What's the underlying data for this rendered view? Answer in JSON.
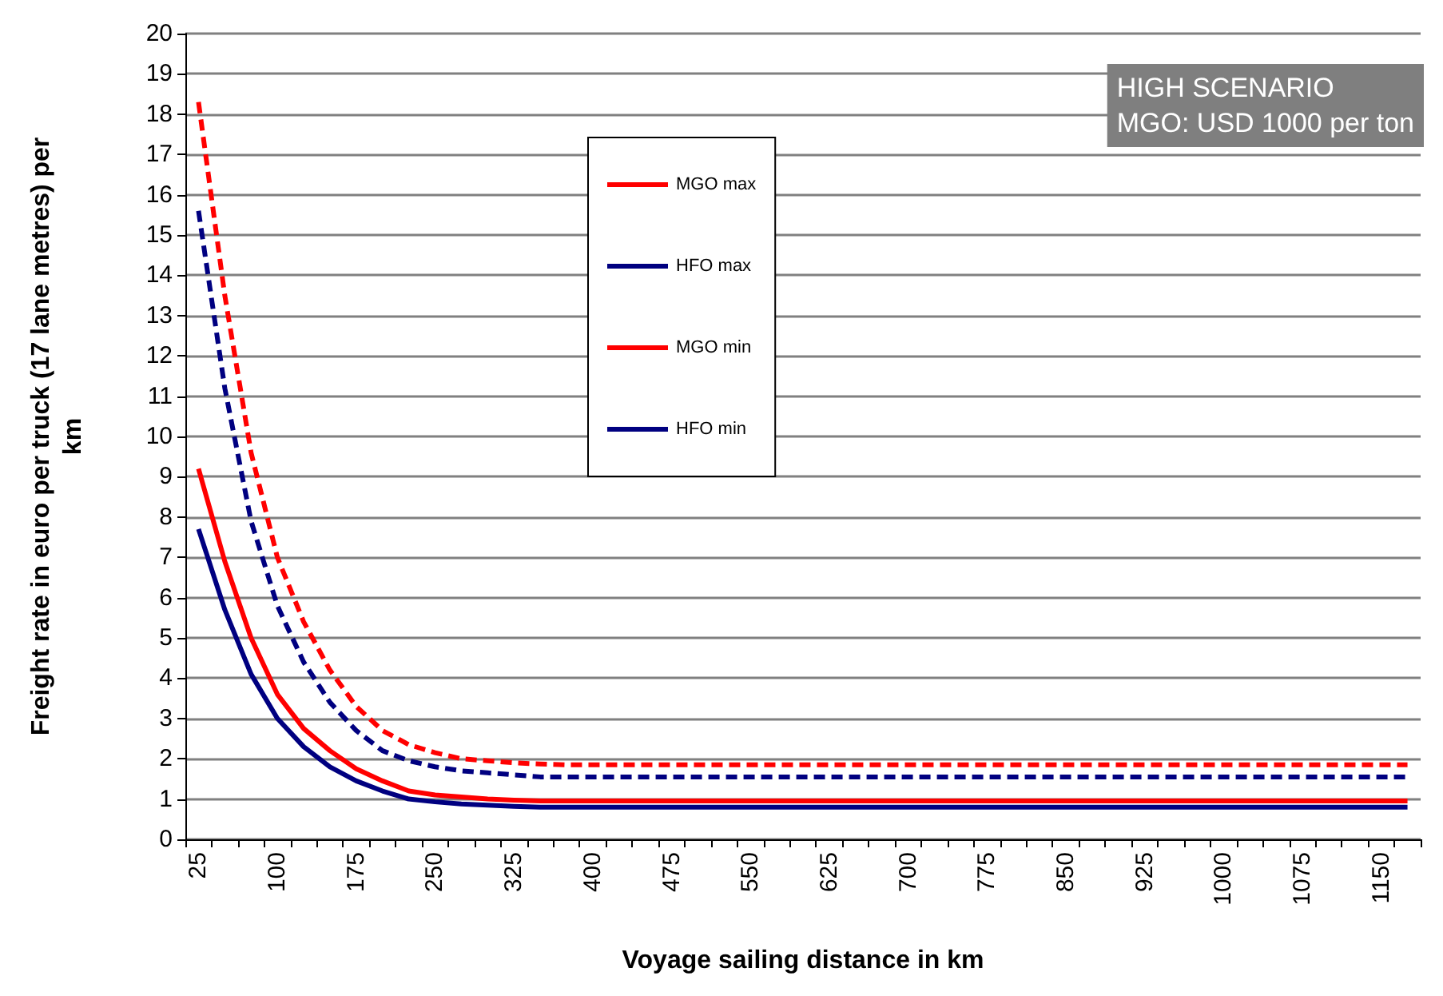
{
  "chart_data": {
    "type": "line",
    "xlabel": "Voyage sailing distance in km",
    "ylabel": "Freight rate in euro per truck (17 lane metres) per\nkm",
    "categories": [
      "25",
      null,
      null,
      "100",
      null,
      null,
      "175",
      null,
      null,
      "250",
      null,
      null,
      "325",
      null,
      null,
      "400",
      null,
      null,
      "475",
      null,
      null,
      "550",
      null,
      null,
      "625",
      null,
      null,
      "700",
      null,
      null,
      "775",
      null,
      null,
      "850",
      null,
      null,
      "925",
      null,
      null,
      "1000",
      null,
      null,
      "1075",
      null,
      null,
      "1150",
      null
    ],
    "ylim": [
      0,
      20
    ],
    "yticks": [
      0,
      1,
      2,
      3,
      4,
      5,
      6,
      7,
      8,
      9,
      10,
      11,
      12,
      13,
      14,
      15,
      16,
      17,
      18,
      19,
      20
    ],
    "grid": "y",
    "legend": "top",
    "marker": "none",
    "annotations": [
      "HIGH SCENARIO\nMGO: USD 1000 per ton"
    ],
    "series": [
      {
        "name": "MGO max",
        "color": "#ff0000",
        "line_style": "dashed",
        "values": [
          18.3,
          13.5,
          9.6,
          7.0,
          5.4,
          4.2,
          3.3,
          2.7,
          2.35,
          2.15,
          2.0,
          1.95,
          1.9,
          1.87,
          1.85,
          1.85,
          1.85,
          1.85,
          1.85,
          1.85,
          1.85,
          1.85,
          1.85,
          1.85,
          1.85,
          1.85,
          1.85,
          1.85,
          1.85,
          1.85,
          1.85,
          1.85,
          1.85,
          1.85,
          1.85,
          1.85,
          1.85,
          1.85,
          1.85,
          1.85,
          1.85,
          1.85,
          1.85,
          1.85,
          1.85,
          1.85,
          1.85
        ]
      },
      {
        "name": "HFO max",
        "color": "#000080",
        "line_style": "dashed",
        "values": [
          15.6,
          11.2,
          7.9,
          5.8,
          4.4,
          3.4,
          2.7,
          2.2,
          1.95,
          1.8,
          1.7,
          1.65,
          1.6,
          1.55,
          1.55,
          1.55,
          1.55,
          1.55,
          1.55,
          1.55,
          1.55,
          1.55,
          1.55,
          1.55,
          1.55,
          1.55,
          1.55,
          1.55,
          1.55,
          1.55,
          1.55,
          1.55,
          1.55,
          1.55,
          1.55,
          1.55,
          1.55,
          1.55,
          1.55,
          1.55,
          1.55,
          1.55,
          1.55,
          1.55,
          1.55,
          1.55,
          1.55
        ]
      },
      {
        "name": "MGO min",
        "color": "#ff0000",
        "line_style": "solid",
        "values": [
          9.2,
          6.9,
          5.0,
          3.6,
          2.75,
          2.2,
          1.75,
          1.45,
          1.2,
          1.1,
          1.05,
          1.0,
          0.97,
          0.95,
          0.95,
          0.95,
          0.95,
          0.95,
          0.95,
          0.95,
          0.95,
          0.95,
          0.95,
          0.95,
          0.95,
          0.95,
          0.95,
          0.95,
          0.95,
          0.95,
          0.95,
          0.95,
          0.95,
          0.95,
          0.95,
          0.95,
          0.95,
          0.95,
          0.95,
          0.95,
          0.95,
          0.95,
          0.95,
          0.95,
          0.95,
          0.95,
          0.95
        ]
      },
      {
        "name": "HFO min",
        "color": "#000080",
        "line_style": "solid",
        "values": [
          7.7,
          5.7,
          4.1,
          3.0,
          2.3,
          1.8,
          1.45,
          1.2,
          1.0,
          0.93,
          0.88,
          0.85,
          0.82,
          0.8,
          0.8,
          0.8,
          0.8,
          0.8,
          0.8,
          0.8,
          0.8,
          0.8,
          0.8,
          0.8,
          0.8,
          0.8,
          0.8,
          0.8,
          0.8,
          0.8,
          0.8,
          0.8,
          0.8,
          0.8,
          0.8,
          0.8,
          0.8,
          0.8,
          0.8,
          0.8,
          0.8,
          0.8,
          0.8,
          0.8,
          0.8,
          0.8,
          0.8
        ]
      }
    ]
  }
}
